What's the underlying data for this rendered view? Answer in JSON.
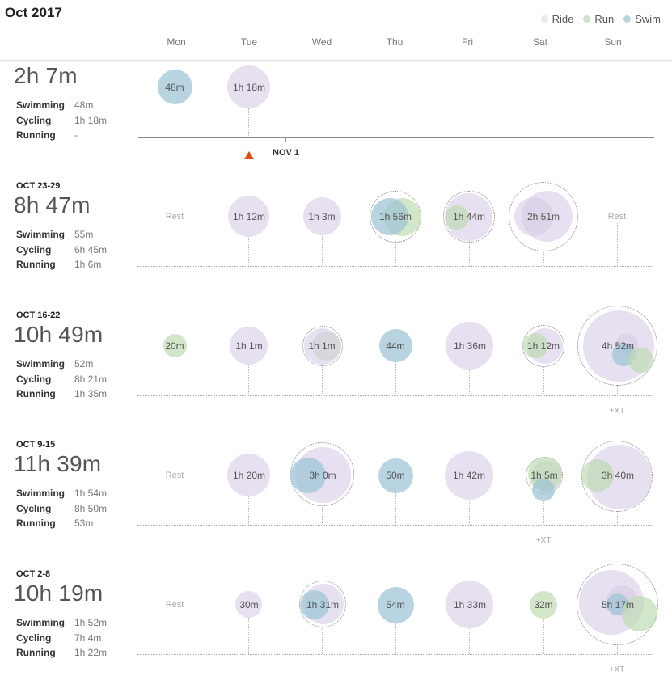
{
  "header": {
    "month_title": "Oct 2017"
  },
  "legend": [
    {
      "label": "Ride",
      "color": "#e8e8e8"
    },
    {
      "label": "Run",
      "color": "#cfe3c6"
    },
    {
      "label": "Swim",
      "color": "#b8d4e3"
    }
  ],
  "days": [
    "Mon",
    "Tue",
    "Wed",
    "Thu",
    "Fri",
    "Sat",
    "Sun"
  ],
  "today_marker": {
    "label": "NOV 1"
  },
  "weeks": [
    {
      "label": "",
      "total": "2h 7m",
      "stats": [
        {
          "name": "Swimming",
          "value": "48m"
        },
        {
          "name": "Cycling",
          "value": "1h 18m"
        },
        {
          "name": "Running",
          "value": "-"
        }
      ],
      "days": [
        {
          "day": "Mon",
          "label": "48m"
        },
        {
          "day": "Tue",
          "label": "1h 18m"
        }
      ]
    },
    {
      "label": "OCT 23-29",
      "total": "8h 47m",
      "stats": [
        {
          "name": "Swimming",
          "value": "55m"
        },
        {
          "name": "Cycling",
          "value": "6h 45m"
        },
        {
          "name": "Running",
          "value": "1h 6m"
        }
      ],
      "days": [
        {
          "day": "Mon",
          "label": "Rest"
        },
        {
          "day": "Tue",
          "label": "1h 12m"
        },
        {
          "day": "Wed",
          "label": "1h 3m"
        },
        {
          "day": "Thu",
          "label": "1h 56m"
        },
        {
          "day": "Fri",
          "label": "1h 44m"
        },
        {
          "day": "Sat",
          "label": "2h 51m"
        },
        {
          "day": "Sun",
          "label": "Rest"
        }
      ]
    },
    {
      "label": "OCT 16-22",
      "total": "10h 49m",
      "stats": [
        {
          "name": "Swimming",
          "value": "52m"
        },
        {
          "name": "Cycling",
          "value": "8h 21m"
        },
        {
          "name": "Running",
          "value": "1h 35m"
        }
      ],
      "days": [
        {
          "day": "Mon",
          "label": "20m"
        },
        {
          "day": "Tue",
          "label": "1h 1m"
        },
        {
          "day": "Wed",
          "label": "1h 1m"
        },
        {
          "day": "Thu",
          "label": "44m"
        },
        {
          "day": "Fri",
          "label": "1h 36m"
        },
        {
          "day": "Sat",
          "label": "1h 12m"
        },
        {
          "day": "Sun",
          "label": "4h 52m",
          "extra": "+XT"
        }
      ]
    },
    {
      "label": "OCT 9-15",
      "total": "11h 39m",
      "stats": [
        {
          "name": "Swimming",
          "value": "1h 54m"
        },
        {
          "name": "Cycling",
          "value": "8h 50m"
        },
        {
          "name": "Running",
          "value": "53m"
        }
      ],
      "days": [
        {
          "day": "Mon",
          "label": "Rest"
        },
        {
          "day": "Tue",
          "label": "1h 20m"
        },
        {
          "day": "Wed",
          "label": "3h 0m"
        },
        {
          "day": "Thu",
          "label": "50m"
        },
        {
          "day": "Fri",
          "label": "1h 42m"
        },
        {
          "day": "Sat",
          "label": "1h 5m",
          "extra": "+XT"
        },
        {
          "day": "Sun",
          "label": "3h 40m"
        }
      ]
    },
    {
      "label": "OCT 2-8",
      "total": "10h 19m",
      "stats": [
        {
          "name": "Swimming",
          "value": "1h 52m"
        },
        {
          "name": "Cycling",
          "value": "7h 4m"
        },
        {
          "name": "Running",
          "value": "1h 22m"
        }
      ],
      "days": [
        {
          "day": "Mon",
          "label": "Rest"
        },
        {
          "day": "Tue",
          "label": "30m"
        },
        {
          "day": "Wed",
          "label": "1h 31m"
        },
        {
          "day": "Thu",
          "label": "54m"
        },
        {
          "day": "Fri",
          "label": "1h 33m"
        },
        {
          "day": "Sat",
          "label": "32m"
        },
        {
          "day": "Sun",
          "label": "5h 17m",
          "extra": "+XT"
        }
      ]
    }
  ]
}
